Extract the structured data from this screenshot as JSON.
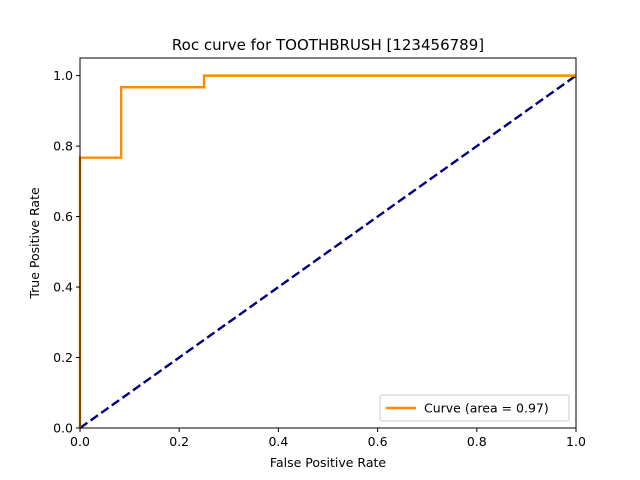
{
  "chart_data": {
    "type": "line",
    "title": "Roc curve for TOOTHBRUSH [123456789]",
    "xlabel": "False Positive Rate",
    "ylabel": "True Positive Rate",
    "xlim": [
      0.0,
      1.0
    ],
    "ylim": [
      0.0,
      1.05
    ],
    "x_ticks": [
      0.0,
      0.2,
      0.4,
      0.6,
      0.8,
      1.0
    ],
    "x_tick_labels": [
      "0.0",
      "0.2",
      "0.4",
      "0.6",
      "0.8",
      "1.0"
    ],
    "y_ticks": [
      0.0,
      0.2,
      0.4,
      0.6,
      0.8,
      1.0
    ],
    "y_tick_labels": [
      "0.0",
      "0.2",
      "0.4",
      "0.6",
      "0.8",
      "1.0"
    ],
    "grid": false,
    "legend_position": "bottom-right",
    "series": [
      {
        "name": "Curve (area = 0.97)",
        "color": "#ff8c00",
        "style": "solid",
        "x": [
          0.0,
          0.0,
          0.083,
          0.083,
          0.25,
          0.25,
          1.0
        ],
        "y": [
          0.0,
          0.767,
          0.767,
          0.967,
          0.967,
          1.0,
          1.0
        ]
      },
      {
        "color": "#000080",
        "style": "dashed",
        "x": [
          0.0,
          1.0
        ],
        "y": [
          0.0,
          1.0
        ]
      }
    ]
  }
}
